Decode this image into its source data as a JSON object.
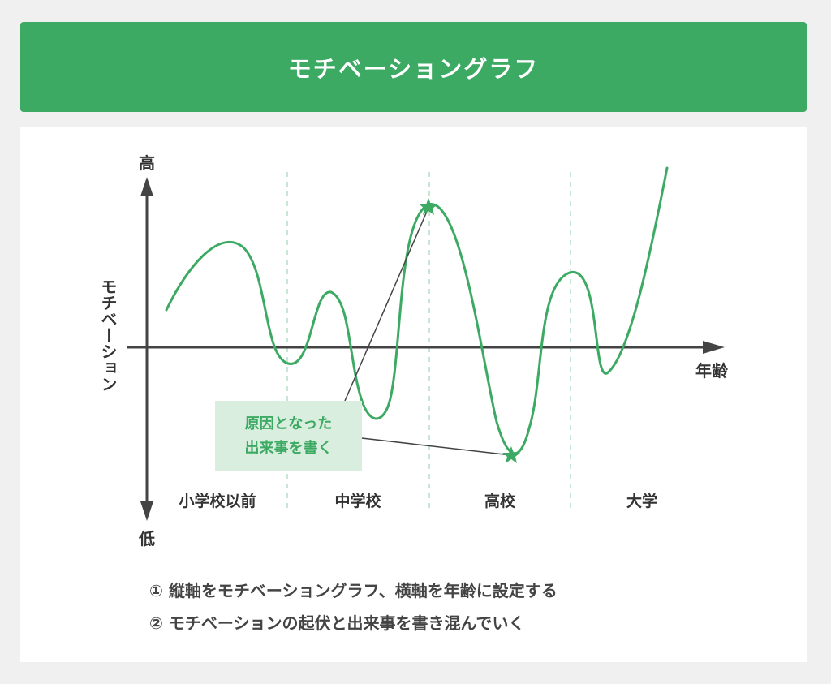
{
  "header": {
    "title": "モチベーショングラフ"
  },
  "graph": {
    "y_top_label": "高",
    "y_bottom_label": "低",
    "y_axis_label": "モチベーション",
    "x_axis_label": "年齢",
    "stages": [
      "小学校以前",
      "中学校",
      "高校",
      "大学"
    ],
    "callout": {
      "line1": "原因となった",
      "line2": "出来事を書く"
    },
    "curve_color": "#3daa64",
    "axis_color": "#444444",
    "divider_color": "#c7e6d3"
  },
  "notes": [
    "① 縦軸をモチベーショングラフ、横軸を年齢に設定する",
    "② モチベーションの起伏と出来事を書き混んでいく"
  ]
}
